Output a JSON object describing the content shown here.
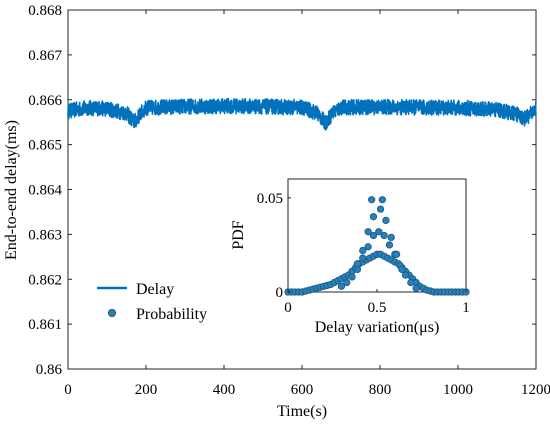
{
  "chart_data": [
    {
      "type": "line",
      "xlabel": "Time(s)",
      "ylabel": "End-to-end delay(ms)",
      "xlim": [
        0,
        1200
      ],
      "ylim": [
        0.86,
        0.868
      ],
      "xticks": [
        "0",
        "200",
        "400",
        "600",
        "800",
        "1000",
        "1200"
      ],
      "yticks": [
        "0.86",
        "0.861",
        "0.862",
        "0.863",
        "0.864",
        "0.865",
        "0.866",
        "0.867",
        "0.868"
      ],
      "grid": false,
      "legend_position": "bottom-left",
      "color": "#0072BD",
      "series": [
        {
          "name": "Delay",
          "x": [
            0,
            50,
            100,
            150,
            170,
            185,
            200,
            300,
            400,
            500,
            600,
            640,
            660,
            680,
            700,
            800,
            900,
            1000,
            1100,
            1150,
            1170,
            1190,
            1200
          ],
          "y": [
            0.86575,
            0.86582,
            0.8658,
            0.8657,
            0.8655,
            0.86568,
            0.86582,
            0.86585,
            0.86586,
            0.86585,
            0.86583,
            0.8657,
            0.86548,
            0.86572,
            0.86583,
            0.86584,
            0.86583,
            0.86582,
            0.86578,
            0.86568,
            0.86558,
            0.8657,
            0.86582
          ]
        }
      ]
    },
    {
      "type": "scatter",
      "xlabel": "Delay variation(μs)",
      "ylabel": "PDF",
      "xlim": [
        0,
        1
      ],
      "ylim": [
        0,
        0.06
      ],
      "xticks": [
        "0",
        "0.5",
        "1"
      ],
      "yticks": [
        "0",
        "0.05"
      ],
      "color": "#0072BD",
      "series": [
        {
          "name": "Probability",
          "x": [
            0.0,
            0.02,
            0.04,
            0.06,
            0.08,
            0.1,
            0.12,
            0.14,
            0.16,
            0.18,
            0.2,
            0.22,
            0.24,
            0.26,
            0.28,
            0.3,
            0.32,
            0.34,
            0.36,
            0.38,
            0.4,
            0.42,
            0.44,
            0.46,
            0.48,
            0.5,
            0.52,
            0.54,
            0.56,
            0.58,
            0.6,
            0.62,
            0.64,
            0.66,
            0.68,
            0.7,
            0.72,
            0.74,
            0.76,
            0.78,
            0.8,
            0.82,
            0.84,
            0.86,
            0.88,
            0.9,
            0.92,
            0.94,
            0.96,
            0.98,
            1.0,
            0.3,
            0.33,
            0.36,
            0.39,
            0.42,
            0.45,
            0.48,
            0.51,
            0.54,
            0.57,
            0.6,
            0.63,
            0.66,
            0.69,
            0.72,
            0.39,
            0.42,
            0.45,
            0.48,
            0.52,
            0.55,
            0.58,
            0.61,
            0.64,
            0.47,
            0.53
          ],
          "y": [
            0.0,
            0.0,
            0.0,
            0.0,
            0.0,
            0.0005,
            0.001,
            0.0015,
            0.002,
            0.0025,
            0.003,
            0.0035,
            0.004,
            0.005,
            0.006,
            0.007,
            0.008,
            0.009,
            0.011,
            0.013,
            0.015,
            0.016,
            0.017,
            0.018,
            0.019,
            0.02,
            0.02,
            0.019,
            0.018,
            0.017,
            0.016,
            0.015,
            0.013,
            0.011,
            0.009,
            0.007,
            0.005,
            0.003,
            0.002,
            0.001,
            0.0005,
            0.0,
            0.0,
            0.0,
            0.0,
            0.0,
            0.0,
            0.0,
            0.0,
            0.0,
            0.0,
            0.003,
            0.005,
            0.008,
            0.012,
            0.018,
            0.024,
            0.03,
            0.032,
            0.03,
            0.025,
            0.02,
            0.014,
            0.009,
            0.005,
            0.002,
            0.015,
            0.022,
            0.032,
            0.04,
            0.044,
            0.038,
            0.029,
            0.02,
            0.012,
            0.049,
            0.049
          ]
        }
      ]
    }
  ]
}
